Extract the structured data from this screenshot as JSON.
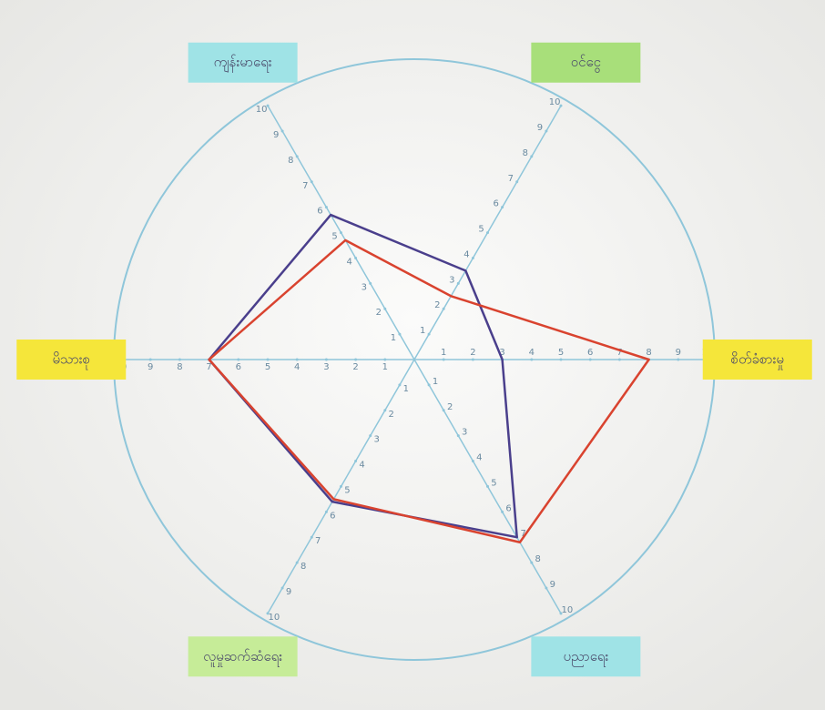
{
  "chart_data": {
    "type": "radar",
    "categories": [
      "စိတ်ခံစားမှု",
      "ဝင်ငွေ",
      "ကျန်းမာရေး",
      "မိသားစု",
      "လူမှုဆက်ဆံရေး",
      "ပညာရေး"
    ],
    "category_colors": [
      "#f5e63a",
      "#a8df7a",
      "#9fe3e6",
      "#f5e63a",
      "#c6ec98",
      "#9fe3e6"
    ],
    "series": [
      {
        "color": "#4a3f8c",
        "values": [
          3,
          3.5,
          5.7,
          7,
          5.6,
          7
        ]
      },
      {
        "color": "#d9432f",
        "values": [
          8,
          2.5,
          4.7,
          7,
          5.5,
          7.2
        ]
      }
    ],
    "ylim": [
      0,
      10
    ],
    "yticks": [
      1,
      2,
      3,
      4,
      5,
      6,
      7,
      8,
      9,
      10
    ]
  }
}
